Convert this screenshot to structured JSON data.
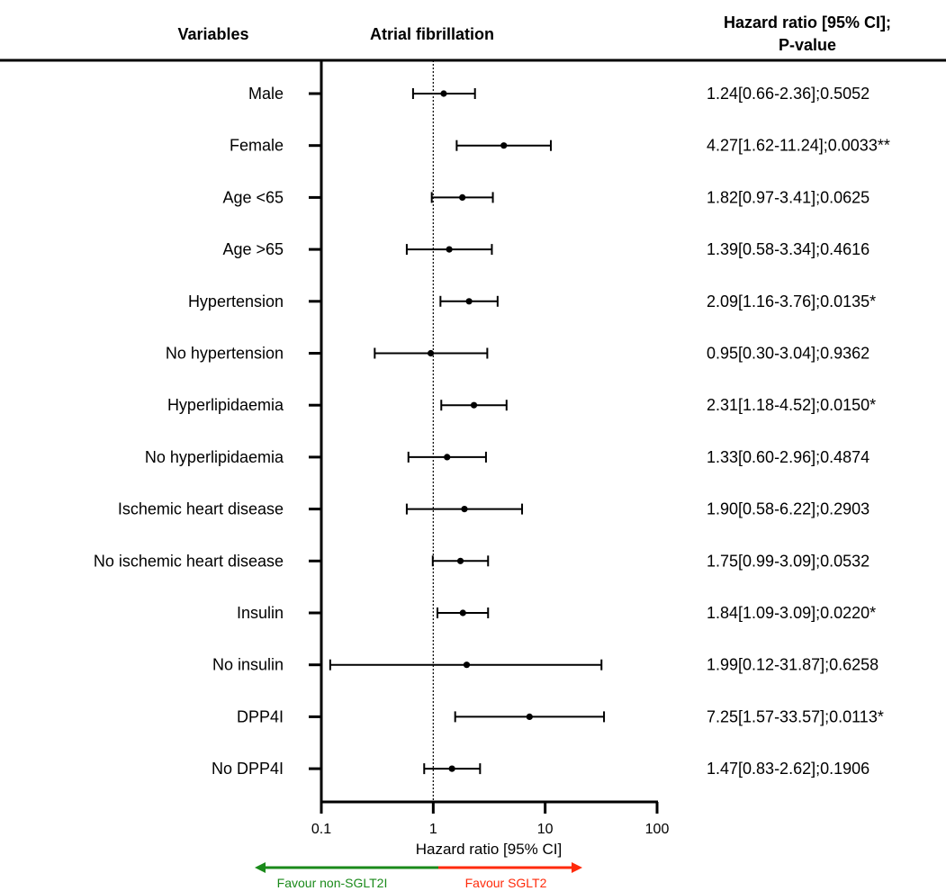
{
  "chart_data": {
    "type": "forest",
    "headers": {
      "variables": "Variables",
      "outcome": "Atrial fibrillation",
      "hr_line1": "Hazard ratio [95% CI];",
      "hr_line2": "P-value"
    },
    "xlabel": "Hazard ratio [95% CI]",
    "x_scale": "log",
    "xlim": [
      0.1,
      100
    ],
    "x_ticks": [
      "0.1",
      "1",
      "10",
      "100"
    ],
    "x_tick_values": [
      0.1,
      1,
      10,
      100
    ],
    "reference_line": 1,
    "favour_left": "Favour non-SGLT2I",
    "favour_right": "Favour SGLT2",
    "colors": {
      "favour_left": "#1a8a1a",
      "favour_right": "#ff2a0a",
      "marks": "#000000"
    },
    "rows": [
      {
        "label": "Male",
        "hr": 1.24,
        "lo": 0.66,
        "hi": 2.36,
        "text": "1.24[0.66-2.36];0.5052"
      },
      {
        "label": "Female",
        "hr": 4.27,
        "lo": 1.62,
        "hi": 11.24,
        "text": "4.27[1.62-11.24];0.0033**"
      },
      {
        "label": "Age <65",
        "hr": 1.82,
        "lo": 0.97,
        "hi": 3.41,
        "text": "1.82[0.97-3.41];0.0625"
      },
      {
        "label": "Age >65",
        "hr": 1.39,
        "lo": 0.58,
        "hi": 3.34,
        "text": "1.39[0.58-3.34];0.4616"
      },
      {
        "label": "Hypertension",
        "hr": 2.09,
        "lo": 1.16,
        "hi": 3.76,
        "text": "2.09[1.16-3.76];0.0135*"
      },
      {
        "label": "No hypertension",
        "hr": 0.95,
        "lo": 0.3,
        "hi": 3.04,
        "text": "0.95[0.30-3.04];0.9362"
      },
      {
        "label": "Hyperlipidaemia",
        "hr": 2.31,
        "lo": 1.18,
        "hi": 4.52,
        "text": "2.31[1.18-4.52];0.0150*"
      },
      {
        "label": "No hyperlipidaemia",
        "hr": 1.33,
        "lo": 0.6,
        "hi": 2.96,
        "text": "1.33[0.60-2.96];0.4874"
      },
      {
        "label": "Ischemic heart disease",
        "hr": 1.9,
        "lo": 0.58,
        "hi": 6.22,
        "text": "1.90[0.58-6.22];0.2903"
      },
      {
        "label": "No ischemic heart disease",
        "hr": 1.75,
        "lo": 0.99,
        "hi": 3.09,
        "text": "1.75[0.99-3.09];0.0532"
      },
      {
        "label": "Insulin",
        "hr": 1.84,
        "lo": 1.09,
        "hi": 3.09,
        "text": "1.84[1.09-3.09];0.0220*"
      },
      {
        "label": "No insulin",
        "hr": 1.99,
        "lo": 0.12,
        "hi": 31.87,
        "text": "1.99[0.12-31.87];0.6258"
      },
      {
        "label": "DPP4I",
        "hr": 7.25,
        "lo": 1.57,
        "hi": 33.57,
        "text": "7.25[1.57-33.57];0.0113*"
      },
      {
        "label": "No DPP4I",
        "hr": 1.47,
        "lo": 0.83,
        "hi": 2.62,
        "text": "1.47[0.83-2.62];0.1906"
      }
    ]
  }
}
